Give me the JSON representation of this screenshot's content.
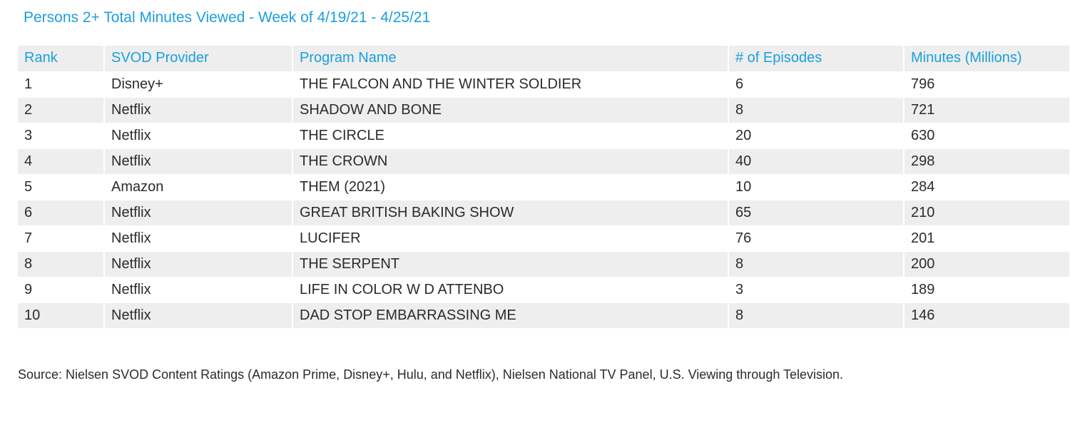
{
  "title": "Persons 2+ Total Minutes Viewed - Week of 4/19/21 - 4/25/21",
  "chart_data": {
    "type": "table",
    "title": "Persons 2+ Total Minutes Viewed - Week of 4/19/21 - 4/25/21",
    "columns": [
      "Rank",
      "SVOD Provider",
      "Program Name",
      "# of Episodes",
      "Minutes (Millions)"
    ],
    "rows": [
      [
        "1",
        "Disney+",
        "THE FALCON AND THE WINTER SOLDIER",
        "6",
        "796"
      ],
      [
        "2",
        "Netflix",
        "SHADOW AND BONE",
        "8",
        "721"
      ],
      [
        "3",
        "Netflix",
        "THE CIRCLE",
        "20",
        "630"
      ],
      [
        "4",
        "Netflix",
        "THE CROWN",
        "40",
        "298"
      ],
      [
        "5",
        "Amazon",
        "THEM (2021)",
        "10",
        "284"
      ],
      [
        "6",
        "Netflix",
        "GREAT BRITISH BAKING SHOW",
        "65",
        "210"
      ],
      [
        "7",
        "Netflix",
        "LUCIFER",
        "76",
        "201"
      ],
      [
        "8",
        "Netflix",
        "THE SERPENT",
        "8",
        "200"
      ],
      [
        "9",
        "Netflix",
        "LIFE IN COLOR W D ATTENBO",
        "3",
        "189"
      ],
      [
        "10",
        "Netflix",
        "DAD STOP EMBARRASSING ME",
        "8",
        "146"
      ]
    ]
  },
  "source": "Source: Nielsen SVOD Content Ratings (Amazon Prime, Disney+, Hulu, and Netflix), Nielsen National TV Panel, U.S. Viewing through Television.",
  "colors": {
    "header_text": "#1aa0dc",
    "stripe": "#eeeeee",
    "body_text": "#2b2b2b"
  }
}
